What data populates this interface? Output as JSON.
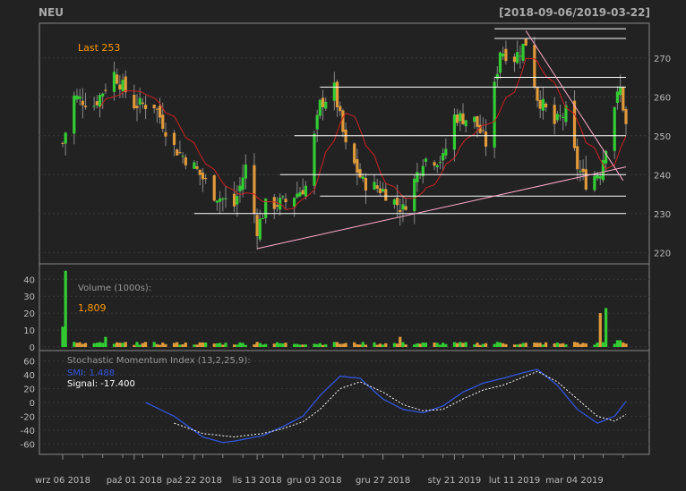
{
  "header": {
    "symbol": "NEU",
    "range": "[2018-09-06/2019-03-22]"
  },
  "colors": {
    "background": "#222222",
    "panel_border": "#888888",
    "grid": "#3a3a3a",
    "up": "#33cc33",
    "down": "#e09a3a",
    "ma": "#cc2222",
    "trendline": "#ffaacc",
    "hline": "#ffffff",
    "smi": "#3355dd",
    "signal": "#ffffff",
    "text": "#bbbbbb",
    "accent": "#ff9900"
  },
  "chart_data": [
    {
      "type": "candlestick",
      "name": "price",
      "legend": "Last 253",
      "ylim": [
        218,
        278
      ],
      "yticks": [
        220,
        230,
        240,
        250,
        260,
        270
      ],
      "x_start": "2018-09-06",
      "x_end": "2019-03-22",
      "xtick_labels": [
        "wrz 06 2018",
        "paź 01 2018",
        "paź 22 2018",
        "lis 13 2018",
        "gru 03 2018",
        "gru 27 2018",
        "sty 21 2019",
        "lut 11 2019",
        "mar 04 2019"
      ],
      "xtick_dates": [
        "2018-09-06",
        "2018-10-01",
        "2018-10-22",
        "2018-11-13",
        "2018-12-03",
        "2018-12-27",
        "2019-01-21",
        "2019-02-11",
        "2019-03-04"
      ],
      "close_keypoints": [
        [
          "2018-09-06",
          248
        ],
        [
          "2018-09-10",
          260
        ],
        [
          "2018-09-17",
          258
        ],
        [
          "2018-09-24",
          266
        ],
        [
          "2018-10-01",
          258
        ],
        [
          "2018-10-08",
          258
        ],
        [
          "2018-10-15",
          247
        ],
        [
          "2018-10-22",
          242
        ],
        [
          "2018-10-29",
          235
        ],
        [
          "2018-11-05",
          232
        ],
        [
          "2018-11-09",
          242
        ],
        [
          "2018-11-13",
          226
        ],
        [
          "2018-11-16",
          232
        ],
        [
          "2018-11-23",
          233
        ],
        [
          "2018-11-30",
          237
        ],
        [
          "2018-12-05",
          258
        ],
        [
          "2018-12-10",
          262
        ],
        [
          "2018-12-14",
          247
        ],
        [
          "2018-12-20",
          238
        ],
        [
          "2018-12-27",
          236
        ],
        [
          "2019-01-03",
          231
        ],
        [
          "2019-01-10",
          244
        ],
        [
          "2019-01-17",
          244
        ],
        [
          "2019-01-21",
          255
        ],
        [
          "2019-01-28",
          254
        ],
        [
          "2019-02-01",
          248
        ],
        [
          "2019-02-06",
          272
        ],
        [
          "2019-02-11",
          270
        ],
        [
          "2019-02-15",
          274
        ],
        [
          "2019-02-19",
          260
        ],
        [
          "2019-02-25",
          253
        ],
        [
          "2019-03-01",
          256
        ],
        [
          "2019-03-05",
          242
        ],
        [
          "2019-03-08",
          238
        ],
        [
          "2019-03-13",
          241
        ],
        [
          "2019-03-18",
          258
        ],
        [
          "2019-03-20",
          262
        ],
        [
          "2019-03-22",
          253
        ]
      ],
      "last": 253,
      "hlines": [
        {
          "value": 277.5,
          "from": "2019-02-04",
          "to": "2019-03-22"
        },
        {
          "value": 275,
          "from": "2019-02-04",
          "to": "2019-03-22"
        },
        {
          "value": 265,
          "from": "2019-02-04",
          "to": "2019-03-22"
        },
        {
          "value": 262.5,
          "from": "2018-12-05",
          "to": "2019-03-22"
        },
        {
          "value": 250,
          "from": "2018-11-26",
          "to": "2019-03-22"
        },
        {
          "value": 240,
          "from": "2018-11-21",
          "to": "2019-03-22"
        },
        {
          "value": 234.5,
          "from": "2018-12-05",
          "to": "2019-03-22"
        },
        {
          "value": 230,
          "from": "2018-10-22",
          "to": "2019-03-22"
        }
      ],
      "trendlines": [
        {
          "from": [
            "2018-11-13",
            221
          ],
          "to": [
            "2019-03-22",
            242
          ]
        },
        {
          "from": [
            "2019-02-15",
            277
          ],
          "to": [
            "2019-03-21",
            238.5
          ]
        }
      ]
    },
    {
      "type": "bar",
      "name": "volume",
      "title": "Volume (1000s):",
      "last_label": "1,809",
      "ylim": [
        0,
        47
      ],
      "yticks": [
        0,
        10,
        20,
        30,
        40
      ],
      "spikes": [
        [
          "2018-09-06",
          12
        ],
        [
          "2018-09-07",
          45
        ],
        [
          "2018-09-10",
          3
        ],
        [
          "2018-09-21",
          6
        ],
        [
          "2018-10-02",
          3
        ],
        [
          "2018-11-13",
          3
        ],
        [
          "2018-12-10",
          3
        ],
        [
          "2019-01-02",
          6
        ],
        [
          "2019-02-05",
          3
        ],
        [
          "2019-03-04",
          3
        ],
        [
          "2019-03-13",
          20
        ],
        [
          "2019-03-15",
          23
        ],
        [
          "2019-03-19",
          4
        ],
        [
          "2019-03-20",
          4
        ],
        [
          "2019-03-22",
          2
        ]
      ],
      "base_volume": 1.2
    },
    {
      "type": "line",
      "name": "smi",
      "title": "Stochastic Momentum Index (13,2,25,9):",
      "series_labels": {
        "smi": "SMI: 1.488",
        "signal": "Signal: -17.400"
      },
      "ylim": [
        -70,
        70
      ],
      "yticks": [
        -60,
        -40,
        -20,
        0,
        20,
        40,
        60
      ],
      "smi_keypoints": [
        [
          "2018-10-05",
          0
        ],
        [
          "2018-10-15",
          -20
        ],
        [
          "2018-10-25",
          -50
        ],
        [
          "2018-11-01",
          -58
        ],
        [
          "2018-11-05",
          -56
        ],
        [
          "2018-11-15",
          -48
        ],
        [
          "2018-11-22",
          -35
        ],
        [
          "2018-11-29",
          -20
        ],
        [
          "2018-12-05",
          10
        ],
        [
          "2018-12-12",
          38
        ],
        [
          "2018-12-19",
          35
        ],
        [
          "2018-12-27",
          5
        ],
        [
          "2019-01-03",
          -10
        ],
        [
          "2019-01-10",
          -15
        ],
        [
          "2019-01-17",
          -5
        ],
        [
          "2019-01-24",
          15
        ],
        [
          "2019-01-31",
          28
        ],
        [
          "2019-02-07",
          35
        ],
        [
          "2019-02-13",
          42
        ],
        [
          "2019-02-19",
          48
        ],
        [
          "2019-02-26",
          25
        ],
        [
          "2019-03-05",
          -10
        ],
        [
          "2019-03-12",
          -30
        ],
        [
          "2019-03-18",
          -20
        ],
        [
          "2019-03-22",
          1.5
        ]
      ],
      "signal_keypoints": [
        [
          "2018-10-15",
          -30
        ],
        [
          "2018-10-25",
          -45
        ],
        [
          "2018-11-05",
          -50
        ],
        [
          "2018-11-15",
          -45
        ],
        [
          "2018-11-22",
          -38
        ],
        [
          "2018-11-29",
          -28
        ],
        [
          "2018-12-05",
          -10
        ],
        [
          "2018-12-12",
          20
        ],
        [
          "2018-12-19",
          30
        ],
        [
          "2018-12-27",
          15
        ],
        [
          "2019-01-03",
          -3
        ],
        [
          "2019-01-10",
          -12
        ],
        [
          "2019-01-17",
          -10
        ],
        [
          "2019-01-24",
          5
        ],
        [
          "2019-01-31",
          18
        ],
        [
          "2019-02-07",
          25
        ],
        [
          "2019-02-13",
          35
        ],
        [
          "2019-02-19",
          45
        ],
        [
          "2019-02-26",
          30
        ],
        [
          "2019-03-05",
          5
        ],
        [
          "2019-03-12",
          -20
        ],
        [
          "2019-03-18",
          -27
        ],
        [
          "2019-03-22",
          -17.4
        ]
      ]
    }
  ]
}
